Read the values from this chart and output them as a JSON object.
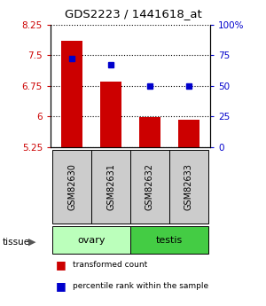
{
  "title": "GDS2223 / 1441618_at",
  "samples": [
    "GSM82630",
    "GSM82631",
    "GSM82632",
    "GSM82633"
  ],
  "bar_values": [
    7.85,
    6.85,
    5.97,
    5.91
  ],
  "bar_base": 5.25,
  "percentile_values": [
    72,
    67,
    50,
    50
  ],
  "ylim_left": [
    5.25,
    8.25
  ],
  "ylim_right": [
    0,
    100
  ],
  "yticks_left": [
    5.25,
    6.0,
    6.75,
    7.5,
    8.25
  ],
  "ytick_labels_left": [
    "5.25",
    "6",
    "6.75",
    "7.5",
    "8.25"
  ],
  "yticks_right": [
    0,
    25,
    50,
    75,
    100
  ],
  "ytick_labels_right": [
    "0",
    "25",
    "50",
    "75",
    "100%"
  ],
  "bar_color": "#cc0000",
  "dot_color": "#0000cc",
  "bar_width": 0.55,
  "background_color": "#ffffff",
  "label_box_color": "#cccccc",
  "tissue_ovary_color": "#bbffbb",
  "tissue_testis_color": "#44cc44",
  "ovary_samples": [
    0,
    1
  ],
  "testis_samples": [
    2,
    3
  ]
}
